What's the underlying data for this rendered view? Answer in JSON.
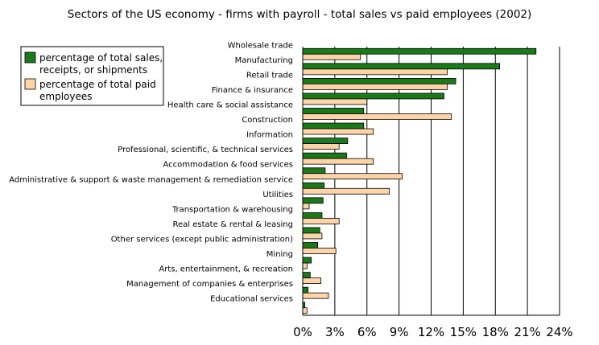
{
  "chart_data": {
    "type": "bar",
    "orientation": "horizontal",
    "title": "Sectors of the US economy - firms with payroll - total sales vs paid employees (2002)",
    "xlabel": "",
    "ylabel": "",
    "xlim": [
      0,
      24
    ],
    "x_ticks": [
      "0%",
      "3%",
      "6%",
      "9%",
      "12%",
      "15%",
      "18%",
      "21%",
      "24%"
    ],
    "grid": "vertical",
    "legend_position": "top-left",
    "categories": [
      "Wholesale trade",
      "Manufacturing",
      "Retail trade",
      "Finance & insurance",
      "Health care & social assistance",
      "Construction",
      "Information",
      "Professional, scientific, & technical services",
      "Accommodation & food services",
      "Administrative & support & waste management & remediation service",
      "Utilities",
      "Transportation & warehousing",
      "Real estate & rental & leasing",
      "Other services (except public administration)",
      "Mining",
      "Arts, entertainment, & recreation",
      "Management of companies & enterprises",
      "Educational services"
    ],
    "series": [
      {
        "name": "percentage of total sales, receipts, or shipments",
        "name_lines": [
          "percentage of total sales,",
          "receipts, or shipments"
        ],
        "color": "#1a7a1a",
        "values": [
          21.8,
          18.4,
          14.3,
          13.2,
          5.7,
          5.7,
          4.2,
          4.1,
          2.1,
          2.0,
          1.9,
          1.8,
          1.6,
          1.4,
          0.8,
          0.7,
          0.5,
          0.2
        ]
      },
      {
        "name": "percentage of total paid employees",
        "name_lines": [
          "percentage of total paid",
          "employees"
        ],
        "color": "#fdd3a8",
        "values": [
          5.4,
          13.5,
          13.5,
          6.0,
          13.9,
          6.6,
          3.4,
          6.6,
          9.3,
          8.1,
          0.6,
          3.4,
          1.8,
          3.1,
          0.4,
          1.7,
          2.4,
          0.4
        ]
      }
    ]
  }
}
